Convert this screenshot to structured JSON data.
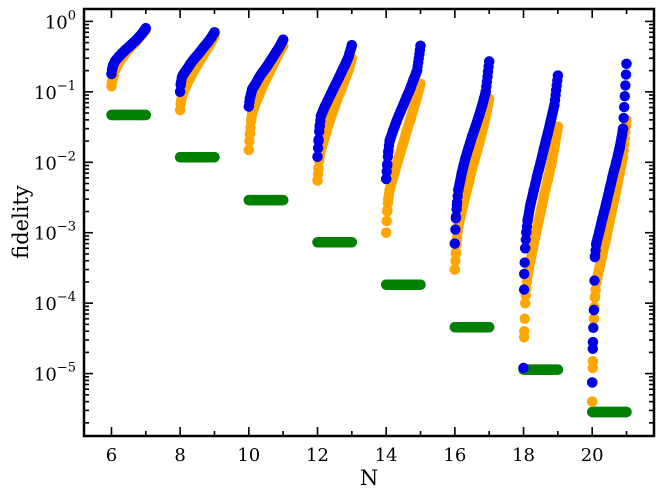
{
  "chart_data": {
    "type": "scatter",
    "title": "",
    "xlabel": "N",
    "ylabel": "fidelity",
    "xlim": [
      5.2,
      21.8
    ],
    "ylim": [
      1.3e-06,
      1.5
    ],
    "yscale": "log",
    "grid": false,
    "legend": "none",
    "x_ticks": [
      {
        "value": 6,
        "label": "6"
      },
      {
        "value": 8,
        "label": "8"
      },
      {
        "value": 10,
        "label": "10"
      },
      {
        "value": 12,
        "label": "12"
      },
      {
        "value": 14,
        "label": "14"
      },
      {
        "value": 16,
        "label": "16"
      },
      {
        "value": 18,
        "label": "18"
      },
      {
        "value": 20,
        "label": "20"
      }
    ],
    "y_ticks": [
      {
        "exponent": 0,
        "label": "10",
        "sup": "0"
      },
      {
        "exponent": -1,
        "label": "10",
        "sup": "−1"
      },
      {
        "exponent": -2,
        "label": "10",
        "sup": "−2"
      },
      {
        "exponent": -3,
        "label": "10",
        "sup": "−3"
      },
      {
        "exponent": -4,
        "label": "10",
        "sup": "−4"
      },
      {
        "exponent": -5,
        "label": "10",
        "sup": "−5"
      }
    ],
    "series": [
      {
        "color": "#008000",
        "groups": [
          {
            "N": 6,
            "x": [
              6.0,
              7.0
            ],
            "y": [
              0.047,
              0.047
            ]
          },
          {
            "N": 8,
            "x": [
              8.0,
              9.0
            ],
            "y": [
              0.0118,
              0.0118
            ]
          },
          {
            "N": 10,
            "x": [
              10.0,
              11.0
            ],
            "y": [
              0.0029,
              0.0029
            ]
          },
          {
            "N": 12,
            "x": [
              12.0,
              13.0
            ],
            "y": [
              0.00073,
              0.00073
            ]
          },
          {
            "N": 14,
            "x": [
              14.0,
              15.0
            ],
            "y": [
              0.000183,
              0.000183
            ]
          },
          {
            "N": 16,
            "x": [
              16.0,
              17.0
            ],
            "y": [
              4.55e-05,
              4.55e-05
            ]
          },
          {
            "N": 18,
            "x": [
              18.0,
              19.0
            ],
            "y": [
              1.14e-05,
              1.14e-05
            ]
          },
          {
            "N": 20,
            "x": [
              20.0,
              21.0
            ],
            "y": [
              2.85e-06,
              2.85e-06
            ]
          }
        ]
      },
      {
        "color": "#FFA500",
        "groups": [
          {
            "N": 6,
            "x": [
              6.0,
              6.02,
              6.05,
              6.1,
              6.2,
              6.3,
              6.4,
              6.5,
              6.6,
              6.7,
              6.8,
              6.9,
              7.0
            ],
            "y": [
              0.12,
              0.14,
              0.16,
              0.2,
              0.25,
              0.3,
              0.35,
              0.4,
              0.45,
              0.5,
              0.58,
              0.66,
              0.75
            ]
          },
          {
            "N": 8,
            "x": [
              8.0,
              8.02,
              8.05,
              8.1,
              8.2,
              8.3,
              8.4,
              8.5,
              8.6,
              8.7,
              8.8,
              8.9,
              9.0
            ],
            "y": [
              0.055,
              0.07,
              0.085,
              0.1,
              0.13,
              0.16,
              0.2,
              0.24,
              0.29,
              0.35,
              0.42,
              0.5,
              0.62
            ]
          },
          {
            "N": 10,
            "x": [
              10.0,
              10.03,
              10.07,
              10.1,
              10.2,
              10.3,
              10.4,
              10.5,
              10.6,
              10.7,
              10.8,
              10.9,
              11.0
            ],
            "y": [
              0.015,
              0.025,
              0.04,
              0.05,
              0.07,
              0.09,
              0.12,
              0.15,
              0.19,
              0.24,
              0.3,
              0.37,
              0.45
            ]
          },
          {
            "N": 12,
            "x": [
              12.0,
              12.03,
              12.06,
              12.1,
              12.2,
              12.3,
              12.4,
              12.5,
              12.6,
              12.7,
              12.8,
              12.9,
              13.0
            ],
            "y": [
              0.0055,
              0.008,
              0.012,
              0.015,
              0.022,
              0.032,
              0.045,
              0.062,
              0.085,
              0.11,
              0.15,
              0.2,
              0.3
            ]
          },
          {
            "N": 14,
            "x": [
              14.0,
              14.03,
              14.06,
              14.1,
              14.2,
              14.3,
              14.4,
              14.5,
              14.6,
              14.7,
              14.8,
              14.9,
              15.0
            ],
            "y": [
              0.001,
              0.002,
              0.003,
              0.004,
              0.006,
              0.009,
              0.013,
              0.019,
              0.028,
              0.04,
              0.058,
              0.085,
              0.13
            ]
          },
          {
            "N": 16,
            "x": [
              16.0,
              16.03,
              16.06,
              16.1,
              16.2,
              16.3,
              16.4,
              16.5,
              16.6,
              16.7,
              16.8,
              16.9,
              17.0
            ],
            "y": [
              0.0003,
              0.0005,
              0.0008,
              0.0012,
              0.002,
              0.0032,
              0.005,
              0.008,
              0.012,
              0.018,
              0.028,
              0.045,
              0.08
            ]
          },
          {
            "N": 18,
            "x": [
              18.0,
              18.02,
              18.05,
              18.08,
              18.12,
              18.2,
              18.3,
              18.4,
              18.5,
              18.6,
              18.7,
              18.8,
              18.9,
              19.0
            ],
            "y": [
              1.2e-05,
              4e-05,
              0.0001,
              0.00016,
              0.00025,
              0.0004,
              0.0007,
              0.0012,
              0.002,
              0.0034,
              0.0055,
              0.009,
              0.016,
              0.032
            ]
          },
          {
            "N": 20,
            "x": [
              20.0,
              20.02,
              20.05,
              20.08,
              20.12,
              20.2,
              20.3,
              20.4,
              20.5,
              20.6,
              20.7,
              20.8,
              20.9,
              21.0
            ],
            "y": [
              4e-06,
              1.5e-05,
              6e-05,
              0.00012,
              0.0002,
              0.0003,
              0.0005,
              0.0008,
              0.0014,
              0.0024,
              0.004,
              0.007,
              0.012,
              0.04
            ]
          }
        ]
      },
      {
        "color": "#0000E6",
        "groups": [
          {
            "N": 6,
            "x": [
              6.0,
              6.02,
              6.05,
              6.1,
              6.2,
              6.3,
              6.4,
              6.5,
              6.6,
              6.7,
              6.8,
              6.9,
              7.0
            ],
            "y": [
              0.18,
              0.21,
              0.24,
              0.27,
              0.31,
              0.35,
              0.39,
              0.43,
              0.48,
              0.53,
              0.6,
              0.68,
              0.8
            ]
          },
          {
            "N": 8,
            "x": [
              8.0,
              8.02,
              8.05,
              8.1,
              8.2,
              8.3,
              8.4,
              8.5,
              8.6,
              8.7,
              8.8,
              8.9,
              9.0
            ],
            "y": [
              0.1,
              0.13,
              0.16,
              0.18,
              0.21,
              0.25,
              0.29,
              0.33,
              0.38,
              0.44,
              0.5,
              0.58,
              0.7
            ]
          },
          {
            "N": 10,
            "x": [
              10.0,
              10.03,
              10.07,
              10.1,
              10.2,
              10.3,
              10.4,
              10.5,
              10.6,
              10.7,
              10.8,
              10.9,
              11.0
            ],
            "y": [
              0.062,
              0.08,
              0.095,
              0.11,
              0.13,
              0.16,
              0.19,
              0.22,
              0.26,
              0.31,
              0.37,
              0.44,
              0.55
            ]
          },
          {
            "N": 12,
            "x": [
              12.0,
              12.03,
              12.06,
              12.1,
              12.2,
              12.3,
              12.4,
              12.5,
              12.6,
              12.7,
              12.8,
              12.9,
              13.0
            ],
            "y": [
              0.012,
              0.02,
              0.032,
              0.045,
              0.06,
              0.075,
              0.095,
              0.12,
              0.15,
              0.19,
              0.24,
              0.31,
              0.46
            ]
          },
          {
            "N": 14,
            "x": [
              14.0,
              14.03,
              14.06,
              14.1,
              14.2,
              14.3,
              14.4,
              14.5,
              14.6,
              14.7,
              14.8,
              14.9,
              15.0
            ],
            "y": [
              0.0058,
              0.009,
              0.014,
              0.02,
              0.028,
              0.038,
              0.05,
              0.065,
              0.085,
              0.11,
              0.15,
              0.2,
              0.45
            ]
          },
          {
            "N": 16,
            "x": [
              16.0,
              16.03,
              16.06,
              16.1,
              16.2,
              16.3,
              16.4,
              16.5,
              16.6,
              16.7,
              16.8,
              16.9,
              17.0
            ],
            "y": [
              0.0007,
              0.0016,
              0.0025,
              0.004,
              0.007,
              0.011,
              0.016,
              0.023,
              0.032,
              0.045,
              0.065,
              0.1,
              0.27
            ]
          },
          {
            "N": 18,
            "x": [
              18.0,
              18.02,
              18.05,
              18.08,
              18.12,
              18.2,
              18.3,
              18.4,
              18.5,
              18.6,
              18.7,
              18.8,
              18.9,
              19.0
            ],
            "y": [
              1.2e-05,
              0.00026,
              0.0006,
              0.001,
              0.0015,
              0.0025,
              0.004,
              0.0065,
              0.01,
              0.016,
              0.025,
              0.04,
              0.065,
              0.17
            ]
          },
          {
            "N": 20,
            "x": [
              20.0,
              20.02,
              20.05,
              20.08,
              20.12,
              20.2,
              20.3,
              20.4,
              20.5,
              20.6,
              20.7,
              20.8,
              20.9,
              21.0
            ],
            "y": [
              7.5e-06,
              2.8e-05,
              8e-05,
              0.00045,
              0.0007,
              0.001,
              0.0016,
              0.0025,
              0.004,
              0.0065,
              0.01,
              0.016,
              0.03,
              0.25
            ]
          }
        ]
      }
    ]
  }
}
